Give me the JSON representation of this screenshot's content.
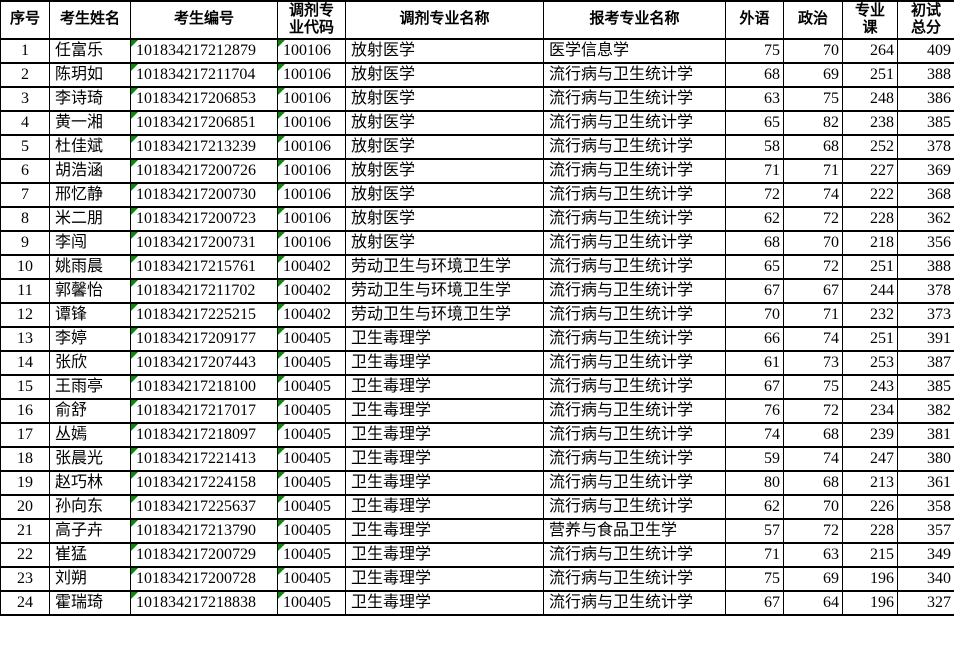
{
  "colors": {
    "border": "#000000",
    "text": "#000000",
    "background": "#ffffff",
    "text_as_number_marker_green": "#128412"
  },
  "table": {
    "columns": [
      {
        "key": "index",
        "label": "序号",
        "align": "center"
      },
      {
        "key": "name",
        "label": "考生姓名",
        "align": "left"
      },
      {
        "key": "candidate-no",
        "label": "考生编号",
        "align": "left",
        "marker": true
      },
      {
        "key": "transfer-code",
        "label": "调剂专\n业代码",
        "align": "left",
        "marker": true
      },
      {
        "key": "transfer-major",
        "label": "调剂专业名称",
        "align": "left"
      },
      {
        "key": "applied-major",
        "label": "报考专业名称",
        "align": "left"
      },
      {
        "key": "foreign-lang",
        "label": "外语",
        "align": "right"
      },
      {
        "key": "politics",
        "label": "政治",
        "align": "right"
      },
      {
        "key": "major-course",
        "label": "专业\n课",
        "align": "right"
      },
      {
        "key": "total-score",
        "label": "初试\n总分",
        "align": "right"
      }
    ],
    "rows": [
      [
        1,
        "任富乐",
        "101834217212879",
        "100106",
        "放射医学",
        "医学信息学",
        75,
        70,
        264,
        409
      ],
      [
        2,
        "陈玥如",
        "101834217211704",
        "100106",
        "放射医学",
        "流行病与卫生统计学",
        68,
        69,
        251,
        388
      ],
      [
        3,
        "李诗琦",
        "101834217206853",
        "100106",
        "放射医学",
        "流行病与卫生统计学",
        63,
        75,
        248,
        386
      ],
      [
        4,
        "黄一湘",
        "101834217206851",
        "100106",
        "放射医学",
        "流行病与卫生统计学",
        65,
        82,
        238,
        385
      ],
      [
        5,
        "杜佳斌",
        "101834217213239",
        "100106",
        "放射医学",
        "流行病与卫生统计学",
        58,
        68,
        252,
        378
      ],
      [
        6,
        "胡浩涵",
        "101834217200726",
        "100106",
        "放射医学",
        "流行病与卫生统计学",
        71,
        71,
        227,
        369
      ],
      [
        7,
        "邢忆静",
        "101834217200730",
        "100106",
        "放射医学",
        "流行病与卫生统计学",
        72,
        74,
        222,
        368
      ],
      [
        8,
        "米二朋",
        "101834217200723",
        "100106",
        "放射医学",
        "流行病与卫生统计学",
        62,
        72,
        228,
        362
      ],
      [
        9,
        "李闯",
        "101834217200731",
        "100106",
        "放射医学",
        "流行病与卫生统计学",
        68,
        70,
        218,
        356
      ],
      [
        10,
        "姚雨晨",
        "101834217215761",
        "100402",
        "劳动卫生与环境卫生学",
        "流行病与卫生统计学",
        65,
        72,
        251,
        388
      ],
      [
        11,
        "郭馨怡",
        "101834217211702",
        "100402",
        "劳动卫生与环境卫生学",
        "流行病与卫生统计学",
        67,
        67,
        244,
        378
      ],
      [
        12,
        "谭锋",
        "101834217225215",
        "100402",
        "劳动卫生与环境卫生学",
        "流行病与卫生统计学",
        70,
        71,
        232,
        373
      ],
      [
        13,
        "李婷",
        "101834217209177",
        "100405",
        "卫生毒理学",
        "流行病与卫生统计学",
        66,
        74,
        251,
        391
      ],
      [
        14,
        "张欣",
        "101834217207443",
        "100405",
        "卫生毒理学",
        "流行病与卫生统计学",
        61,
        73,
        253,
        387
      ],
      [
        15,
        "王雨亭",
        "101834217218100",
        "100405",
        "卫生毒理学",
        "流行病与卫生统计学",
        67,
        75,
        243,
        385
      ],
      [
        16,
        "俞舒",
        "101834217217017",
        "100405",
        "卫生毒理学",
        "流行病与卫生统计学",
        76,
        72,
        234,
        382
      ],
      [
        17,
        "丛嫣",
        "101834217218097",
        "100405",
        "卫生毒理学",
        "流行病与卫生统计学",
        74,
        68,
        239,
        381
      ],
      [
        18,
        "张晨光",
        "101834217221413",
        "100405",
        "卫生毒理学",
        "流行病与卫生统计学",
        59,
        74,
        247,
        380
      ],
      [
        19,
        "赵巧林",
        "101834217224158",
        "100405",
        "卫生毒理学",
        "流行病与卫生统计学",
        80,
        68,
        213,
        361
      ],
      [
        20,
        "孙向东",
        "101834217225637",
        "100405",
        "卫生毒理学",
        "流行病与卫生统计学",
        62,
        70,
        226,
        358
      ],
      [
        21,
        "高子卉",
        "101834217213790",
        "100405",
        "卫生毒理学",
        "营养与食品卫生学",
        57,
        72,
        228,
        357
      ],
      [
        22,
        "崔猛",
        "101834217200729",
        "100405",
        "卫生毒理学",
        "流行病与卫生统计学",
        71,
        63,
        215,
        349
      ],
      [
        23,
        "刘朔",
        "101834217200728",
        "100405",
        "卫生毒理学",
        "流行病与卫生统计学",
        75,
        69,
        196,
        340
      ],
      [
        24,
        "霍瑞琦",
        "101834217218838",
        "100405",
        "卫生毒理学",
        "流行病与卫生统计学",
        67,
        64,
        196,
        327
      ]
    ]
  }
}
